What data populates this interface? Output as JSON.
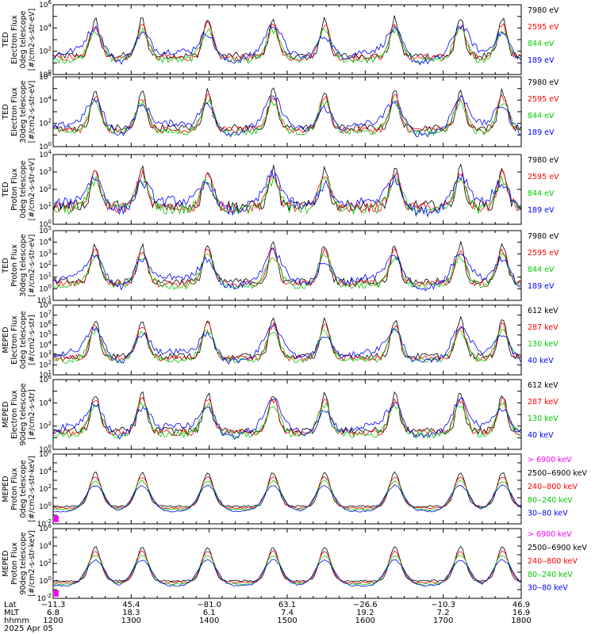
{
  "chart_data": {
    "type": "line",
    "x_axis": {
      "rows": [
        {
          "label": "Lat",
          "values": [
            "−11.3",
            "45.4",
            "−81.0",
            "63.1",
            "−26.6",
            "−10.3",
            "46.9"
          ]
        },
        {
          "label": "MLT",
          "values": [
            "6.8",
            "18.3",
            "6.1",
            "7.4",
            "19.2",
            "7.2",
            "16.9"
          ]
        },
        {
          "label": "hhmm",
          "values": [
            "1200",
            "1300",
            "1400",
            "1500",
            "1600",
            "1700",
            "1800"
          ]
        }
      ],
      "date": "2025 Apr 05",
      "time_range_minutes": [
        720,
        1080
      ]
    },
    "panels": [
      {
        "ylabel": [
          "TED",
          "Electron Flux",
          "0deg telescope",
          "[#/cm2-s-str-eV]"
        ],
        "log_y": true,
        "ylim_exp": [
          0,
          6
        ],
        "tick_labels": [
          "10^0",
          "10^2",
          "10^4",
          "10^6"
        ],
        "series": [
          {
            "name": "7980 eV",
            "color": "#000000"
          },
          {
            "name": "2595 eV",
            "color": "#ff0000"
          },
          {
            "name": "844 eV",
            "color": "#00cc00"
          },
          {
            "name": "189 eV",
            "color": "#0000ff"
          }
        ]
      },
      {
        "ylabel": [
          "TED",
          "Electron Flux",
          "30deg telescope",
          "[#/cm2-s-str-eV]"
        ],
        "log_y": true,
        "ylim_exp": [
          0,
          6
        ],
        "tick_labels": [
          "10^0",
          "10^2",
          "10^4",
          "10^6"
        ],
        "series": [
          {
            "name": "7980 eV",
            "color": "#000000"
          },
          {
            "name": "2595 eV",
            "color": "#ff0000"
          },
          {
            "name": "844 eV",
            "color": "#00cc00"
          },
          {
            "name": "189 eV",
            "color": "#0000ff"
          }
        ]
      },
      {
        "ylabel": [
          "TED",
          "Proton Flux",
          "0deg telescope",
          "[#/cm2-s-str-eV]"
        ],
        "log_y": true,
        "ylim_exp": [
          0,
          4
        ],
        "tick_labels": [
          "10^0",
          "10^1",
          "10^2",
          "10^3",
          "10^4"
        ],
        "series": [
          {
            "name": "7980 eV",
            "color": "#000000"
          },
          {
            "name": "2595 eV",
            "color": "#ff0000"
          },
          {
            "name": "844 eV",
            "color": "#00cc00"
          },
          {
            "name": "189 eV",
            "color": "#0000ff"
          }
        ]
      },
      {
        "ylabel": [
          "TED",
          "Proton Flux",
          "30deg telescope",
          "[#/cm2-s-str-eV]"
        ],
        "log_y": true,
        "ylim_exp": [
          -1,
          5
        ],
        "tick_labels": [
          "10^-1",
          "10^0",
          "10^1",
          "10^2",
          "10^3",
          "10^4",
          "10^5"
        ],
        "series": [
          {
            "name": "7980 eV",
            "color": "#000000"
          },
          {
            "name": "2595 eV",
            "color": "#ff0000"
          },
          {
            "name": "844 eV",
            "color": "#00cc00"
          },
          {
            "name": "189 eV",
            "color": "#0000ff"
          }
        ]
      },
      {
        "ylabel": [
          "MEPED",
          "Electron Flux",
          "0deg telescope",
          "[#/cm2-s-str]"
        ],
        "log_y": true,
        "ylim_exp": [
          1,
          8
        ],
        "tick_labels": [
          "10^1",
          "10^2",
          "10^3",
          "10^4",
          "10^5",
          "10^6",
          "10^7",
          "10^8"
        ],
        "series": [
          {
            "name": "612 keV",
            "color": "#000000"
          },
          {
            "name": "287 keV",
            "color": "#ff0000"
          },
          {
            "name": "130 keV",
            "color": "#00cc00"
          },
          {
            "name": "40 keV",
            "color": "#0000ff"
          }
        ]
      },
      {
        "ylabel": [
          "MEPED",
          "Electron Flux",
          "90deg telescope",
          "[#/cm2-s-str]"
        ],
        "log_y": true,
        "ylim_exp": [
          0,
          6
        ],
        "tick_labels": [
          "10^0",
          "10^2",
          "10^4",
          "10^6"
        ],
        "series": [
          {
            "name": "612 keV",
            "color": "#000000"
          },
          {
            "name": "287 keV",
            "color": "#ff0000"
          },
          {
            "name": "130 keV",
            "color": "#00cc00"
          },
          {
            "name": "40 keV",
            "color": "#0000ff"
          }
        ]
      },
      {
        "ylabel": [
          "MEPED",
          "Proton Flux",
          "0deg telescope",
          "[#/cm2-s-str-keV]"
        ],
        "log_y": true,
        "ylim_exp": [
          -2,
          6
        ],
        "tick_labels": [
          "10^-2",
          "10^0",
          "10^2",
          "10^4",
          "10^6"
        ],
        "series": [
          {
            "name": "> 6900 keV",
            "color": "#ff00ff"
          },
          {
            "name": "2500‒6900 keV",
            "color": "#000000"
          },
          {
            "name": "240‒800 keV",
            "color": "#ff0000"
          },
          {
            "name": "80‒240 keV",
            "color": "#00cc00"
          },
          {
            "name": "30‒80 keV",
            "color": "#0000ff"
          }
        ]
      },
      {
        "ylabel": [
          "MEPED",
          "Proton Flux",
          "90deg telescope",
          "[#/cm2-s-str-keV]"
        ],
        "log_y": true,
        "ylim_exp": [
          -2,
          6
        ],
        "tick_labels": [
          "10^-2",
          "10^0",
          "10^2",
          "10^4",
          "10^6"
        ],
        "series": [
          {
            "name": "> 6900 keV",
            "color": "#ff00ff"
          },
          {
            "name": "2500‒6900 keV",
            "color": "#000000"
          },
          {
            "name": "240‒800 keV",
            "color": "#ff0000"
          },
          {
            "name": "80‒240 keV",
            "color": "#00cc00"
          },
          {
            "name": "30‒80 keV",
            "color": "#0000ff"
          }
        ]
      }
    ]
  }
}
